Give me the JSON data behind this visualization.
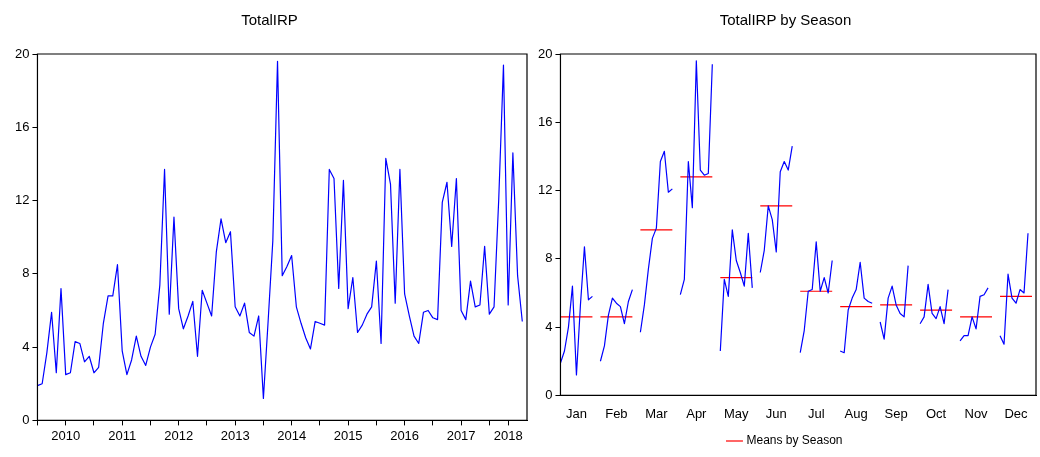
{
  "chart_data": [
    {
      "type": "line",
      "title": "TotalIRP",
      "color": "#0000ff",
      "x": [
        "2010-01",
        "2010-02",
        "2010-03",
        "2010-04",
        "2010-05",
        "2010-06",
        "2010-07",
        "2010-08",
        "2010-09",
        "2010-10",
        "2010-11",
        "2010-12",
        "2011-01",
        "2011-02",
        "2011-03",
        "2011-04",
        "2011-05",
        "2011-06",
        "2011-07",
        "2011-08",
        "2011-09",
        "2011-10",
        "2011-11",
        "2011-12",
        "2012-01",
        "2012-02",
        "2012-03",
        "2012-04",
        "2012-05",
        "2012-06",
        "2012-07",
        "2012-08",
        "2012-09",
        "2012-10",
        "2012-11",
        "2012-12",
        "2013-01",
        "2013-02",
        "2013-03",
        "2013-04",
        "2013-05",
        "2013-06",
        "2013-07",
        "2013-08",
        "2013-09",
        "2013-10",
        "2013-11",
        "2013-12",
        "2014-01",
        "2014-02",
        "2014-03",
        "2014-04",
        "2014-05",
        "2014-06",
        "2014-07",
        "2014-08",
        "2014-09",
        "2014-10",
        "2014-11",
        "2014-12",
        "2015-01",
        "2015-02",
        "2015-03",
        "2015-04",
        "2015-05",
        "2015-06",
        "2015-07",
        "2015-08",
        "2015-09",
        "2015-10",
        "2015-11",
        "2015-12",
        "2016-01",
        "2016-02",
        "2016-03",
        "2016-04",
        "2016-05",
        "2016-06",
        "2016-07",
        "2016-08",
        "2016-09",
        "2016-10",
        "2016-11",
        "2016-12",
        "2017-01",
        "2017-02",
        "2017-03",
        "2017-04",
        "2017-05",
        "2017-06",
        "2017-07",
        "2017-08",
        "2017-09",
        "2017-10",
        "2017-11",
        "2017-12",
        "2018-01",
        "2018-02",
        "2018-03",
        "2018-04",
        "2018-05",
        "2018-06",
        "2018-07",
        "2018-08"
      ],
      "values": [
        1.9,
        2.0,
        3.7,
        5.9,
        2.6,
        7.2,
        2.5,
        2.6,
        4.3,
        4.2,
        3.2,
        3.5,
        2.6,
        2.9,
        5.3,
        6.8,
        6.8,
        8.5,
        3.8,
        2.5,
        3.3,
        4.6,
        3.5,
        3.0,
        4.0,
        4.7,
        7.4,
        13.7,
        5.8,
        11.1,
        6.1,
        5.0,
        5.7,
        6.5,
        3.5,
        7.1,
        6.4,
        5.7,
        9.2,
        11.0,
        9.7,
        10.3,
        6.2,
        5.7,
        6.4,
        4.8,
        4.6,
        5.7,
        1.2,
        5.4,
        9.8,
        19.6,
        7.9,
        8.4,
        9.0,
        6.2,
        5.3,
        4.5,
        3.9,
        5.4,
        5.3,
        5.2,
        13.7,
        13.2,
        7.2,
        13.1,
        6.1,
        7.8,
        4.8,
        5.2,
        5.8,
        6.2,
        8.7,
        4.2,
        14.3,
        12.9,
        6.4,
        13.7,
        6.9,
        5.7,
        4.6,
        4.2,
        5.9,
        6.0,
        5.6,
        5.5,
        11.9,
        13.0,
        9.5,
        13.2,
        6.0,
        5.5,
        7.6,
        6.2,
        6.3,
        9.5,
        5.8,
        6.2,
        12.1,
        19.4,
        6.3,
        14.6,
        7.9,
        5.4
      ],
      "xlim": [
        "2010-01",
        "2018-09"
      ],
      "xticks": [
        {
          "value": "2010-01",
          "label": null
        },
        {
          "value": "2010-07",
          "label": "2010"
        },
        {
          "value": "2011-01",
          "label": null
        },
        {
          "value": "2011-07",
          "label": "2011"
        },
        {
          "value": "2012-01",
          "label": null
        },
        {
          "value": "2012-07",
          "label": "2012"
        },
        {
          "value": "2013-01",
          "label": null
        },
        {
          "value": "2013-07",
          "label": "2013"
        },
        {
          "value": "2014-01",
          "label": null
        },
        {
          "value": "2014-07",
          "label": "2014"
        },
        {
          "value": "2015-01",
          "label": null
        },
        {
          "value": "2015-07",
          "label": "2015"
        },
        {
          "value": "2016-01",
          "label": null
        },
        {
          "value": "2016-07",
          "label": "2016"
        },
        {
          "value": "2017-01",
          "label": null
        },
        {
          "value": "2017-07",
          "label": "2017"
        },
        {
          "value": "2018-01",
          "label": null
        },
        {
          "value": "2018-05",
          "label": "2018"
        }
      ],
      "ylim": [
        0,
        20
      ],
      "yticks": [
        0,
        4,
        8,
        12,
        16,
        20
      ]
    },
    {
      "type": "line",
      "title": "TotalIRP by Season",
      "legend": "bottom",
      "ylim": [
        0,
        20
      ],
      "yticks": [
        0,
        4,
        8,
        12,
        16,
        20
      ],
      "categories": [
        null,
        null,
        null,
        null,
        "Jan",
        null,
        null,
        null,
        null,
        null,
        null,
        null,
        null,
        null,
        "Feb",
        null,
        null,
        null,
        null,
        null,
        null,
        null,
        null,
        null,
        "Mar",
        null,
        null,
        null,
        null,
        null,
        null,
        null,
        null,
        null,
        "Apr",
        null,
        null,
        null,
        null,
        null,
        null,
        null,
        null,
        null,
        "May",
        null,
        null,
        null,
        null,
        null,
        null,
        null,
        null,
        null,
        "Jun",
        null,
        null,
        null,
        null,
        null,
        null,
        null,
        null,
        null,
        "Jul",
        null,
        null,
        null,
        null,
        null,
        null,
        null,
        null,
        null,
        "Aug",
        null,
        null,
        null,
        null,
        null,
        null,
        null,
        null,
        null,
        "Sep",
        null,
        null,
        null,
        null,
        null,
        null,
        null,
        null,
        null,
        "Oct",
        null,
        null,
        null,
        null,
        null,
        null,
        null,
        null,
        null,
        "Nov",
        null,
        null,
        null,
        null,
        null,
        null,
        null,
        null,
        null,
        "Dec",
        null,
        null,
        null,
        null,
        null
      ],
      "series": [
        {
          "color": "#0000ff",
          "values": [
            1.9,
            2.6,
            4.0,
            6.4,
            1.2,
            5.3,
            8.7,
            5.6,
            5.8,
            null,
            2.0,
            2.9,
            4.7,
            5.7,
            5.4,
            5.2,
            4.2,
            5.5,
            6.2,
            null,
            3.7,
            5.3,
            7.4,
            9.2,
            9.8,
            13.7,
            14.3,
            11.9,
            12.1,
            null,
            5.9,
            6.8,
            13.7,
            11.0,
            19.6,
            13.2,
            12.9,
            13.0,
            19.4,
            null,
            2.6,
            6.8,
            5.8,
            9.7,
            7.9,
            7.2,
            6.4,
            9.5,
            6.3,
            null,
            7.2,
            8.5,
            11.1,
            10.3,
            8.4,
            13.1,
            13.7,
            13.2,
            14.6,
            null,
            2.5,
            3.8,
            6.1,
            6.2,
            9.0,
            6.1,
            6.9,
            6.0,
            7.9,
            null,
            2.6,
            2.5,
            5.0,
            5.7,
            6.2,
            7.8,
            5.7,
            5.5,
            5.4,
            null,
            4.3,
            3.3,
            5.7,
            6.4,
            5.3,
            4.8,
            4.6,
            7.6,
            null,
            null,
            4.2,
            4.6,
            6.5,
            4.8,
            4.5,
            5.2,
            4.2,
            6.2,
            null,
            null,
            3.2,
            3.5,
            3.5,
            4.6,
            3.9,
            5.8,
            5.9,
            6.3,
            null,
            null,
            3.5,
            3.0,
            7.1,
            5.7,
            5.4,
            6.2,
            6.0,
            9.5,
            null,
            null
          ]
        },
        {
          "name": "Means by Season",
          "color": "#ff0000",
          "values": [
            4.6,
            4.6,
            4.6,
            4.6,
            4.6,
            4.6,
            4.6,
            4.6,
            4.6,
            null,
            4.6,
            4.6,
            4.6,
            4.6,
            4.6,
            4.6,
            4.6,
            4.6,
            4.6,
            null,
            9.7,
            9.7,
            9.7,
            9.7,
            9.7,
            9.7,
            9.7,
            9.7,
            9.7,
            null,
            12.8,
            12.8,
            12.8,
            12.8,
            12.8,
            12.8,
            12.8,
            12.8,
            12.8,
            null,
            6.9,
            6.9,
            6.9,
            6.9,
            6.9,
            6.9,
            6.9,
            6.9,
            6.9,
            null,
            11.1,
            11.1,
            11.1,
            11.1,
            11.1,
            11.1,
            11.1,
            11.1,
            11.1,
            null,
            6.1,
            6.1,
            6.1,
            6.1,
            6.1,
            6.1,
            6.1,
            6.1,
            6.1,
            null,
            5.2,
            5.2,
            5.2,
            5.2,
            5.2,
            5.2,
            5.2,
            5.2,
            5.2,
            null,
            5.3,
            5.3,
            5.3,
            5.3,
            5.3,
            5.3,
            5.3,
            5.3,
            5.3,
            null,
            5.0,
            5.0,
            5.0,
            5.0,
            5.0,
            5.0,
            5.0,
            5.0,
            5.0,
            null,
            4.6,
            4.6,
            4.6,
            4.6,
            4.6,
            4.6,
            4.6,
            4.6,
            4.6,
            null,
            5.8,
            5.8,
            5.8,
            5.8,
            5.8,
            5.8,
            5.8,
            5.8,
            5.8,
            null
          ]
        }
      ]
    }
  ]
}
